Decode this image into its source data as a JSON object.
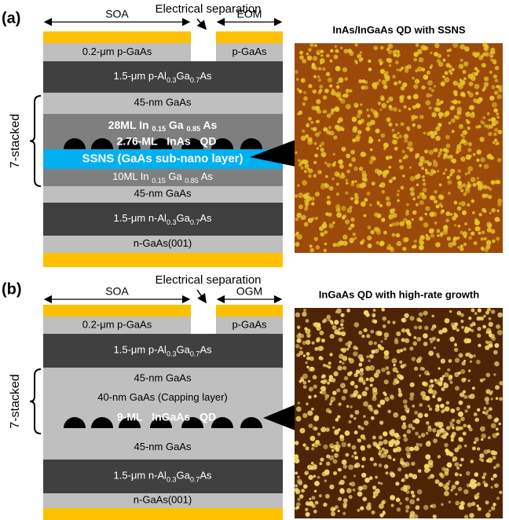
{
  "panels": [
    {
      "label": "(a)",
      "separation": "Electrical separation",
      "regions": [
        "SOA",
        "EOM"
      ],
      "top_layers": [
        "0.2-μm p-GaAs",
        "p-GaAs"
      ],
      "stack_label": "7-stacked",
      "layers": [
        [
          "1.5-μm p-Al",
          "0.3",
          "Ga",
          "0.7",
          "As"
        ],
        [
          "45-nm GaAs"
        ],
        [
          "28ML In ",
          "0.15",
          " Ga ",
          "0.85",
          " As"
        ],
        [
          "SSNS (GaAs sub-nano layer)"
        ],
        [
          "10ML In ",
          "0.15",
          " Ga ",
          "0.85",
          " As"
        ],
        [
          "45-nm GaAs"
        ],
        [
          "1.5-μm n-Al",
          "0.3",
          "Ga",
          "0.7",
          "As"
        ],
        [
          "n-GaAs(001)"
        ]
      ],
      "qd_label": "2.76-ML InAs QD",
      "image_title": "InAs/InGaAs QD with SSNS"
    },
    {
      "label": "(b)",
      "separation": "Electrical separation",
      "regions": [
        "SOA",
        "OGM"
      ],
      "top_layers": [
        "0.2-μm p-GaAs",
        "p-GaAs"
      ],
      "stack_label": "7-stacked",
      "layers": [
        [
          "1.5-μm p-Al",
          "0.3",
          "Ga",
          "0.7",
          "As"
        ],
        [
          "45-nm GaAs"
        ],
        [
          "40-nm GaAs (Capping layer)"
        ],
        [
          "45-nm GaAs"
        ],
        [
          "1.5-μm n-Al",
          "0.3",
          "Ga",
          "0.7",
          "As"
        ],
        [
          "n-GaAs(001)"
        ]
      ],
      "qd_label": "9-ML InGaAs QD",
      "image_title": "InGaAs QD with high-rate growth"
    }
  ]
}
